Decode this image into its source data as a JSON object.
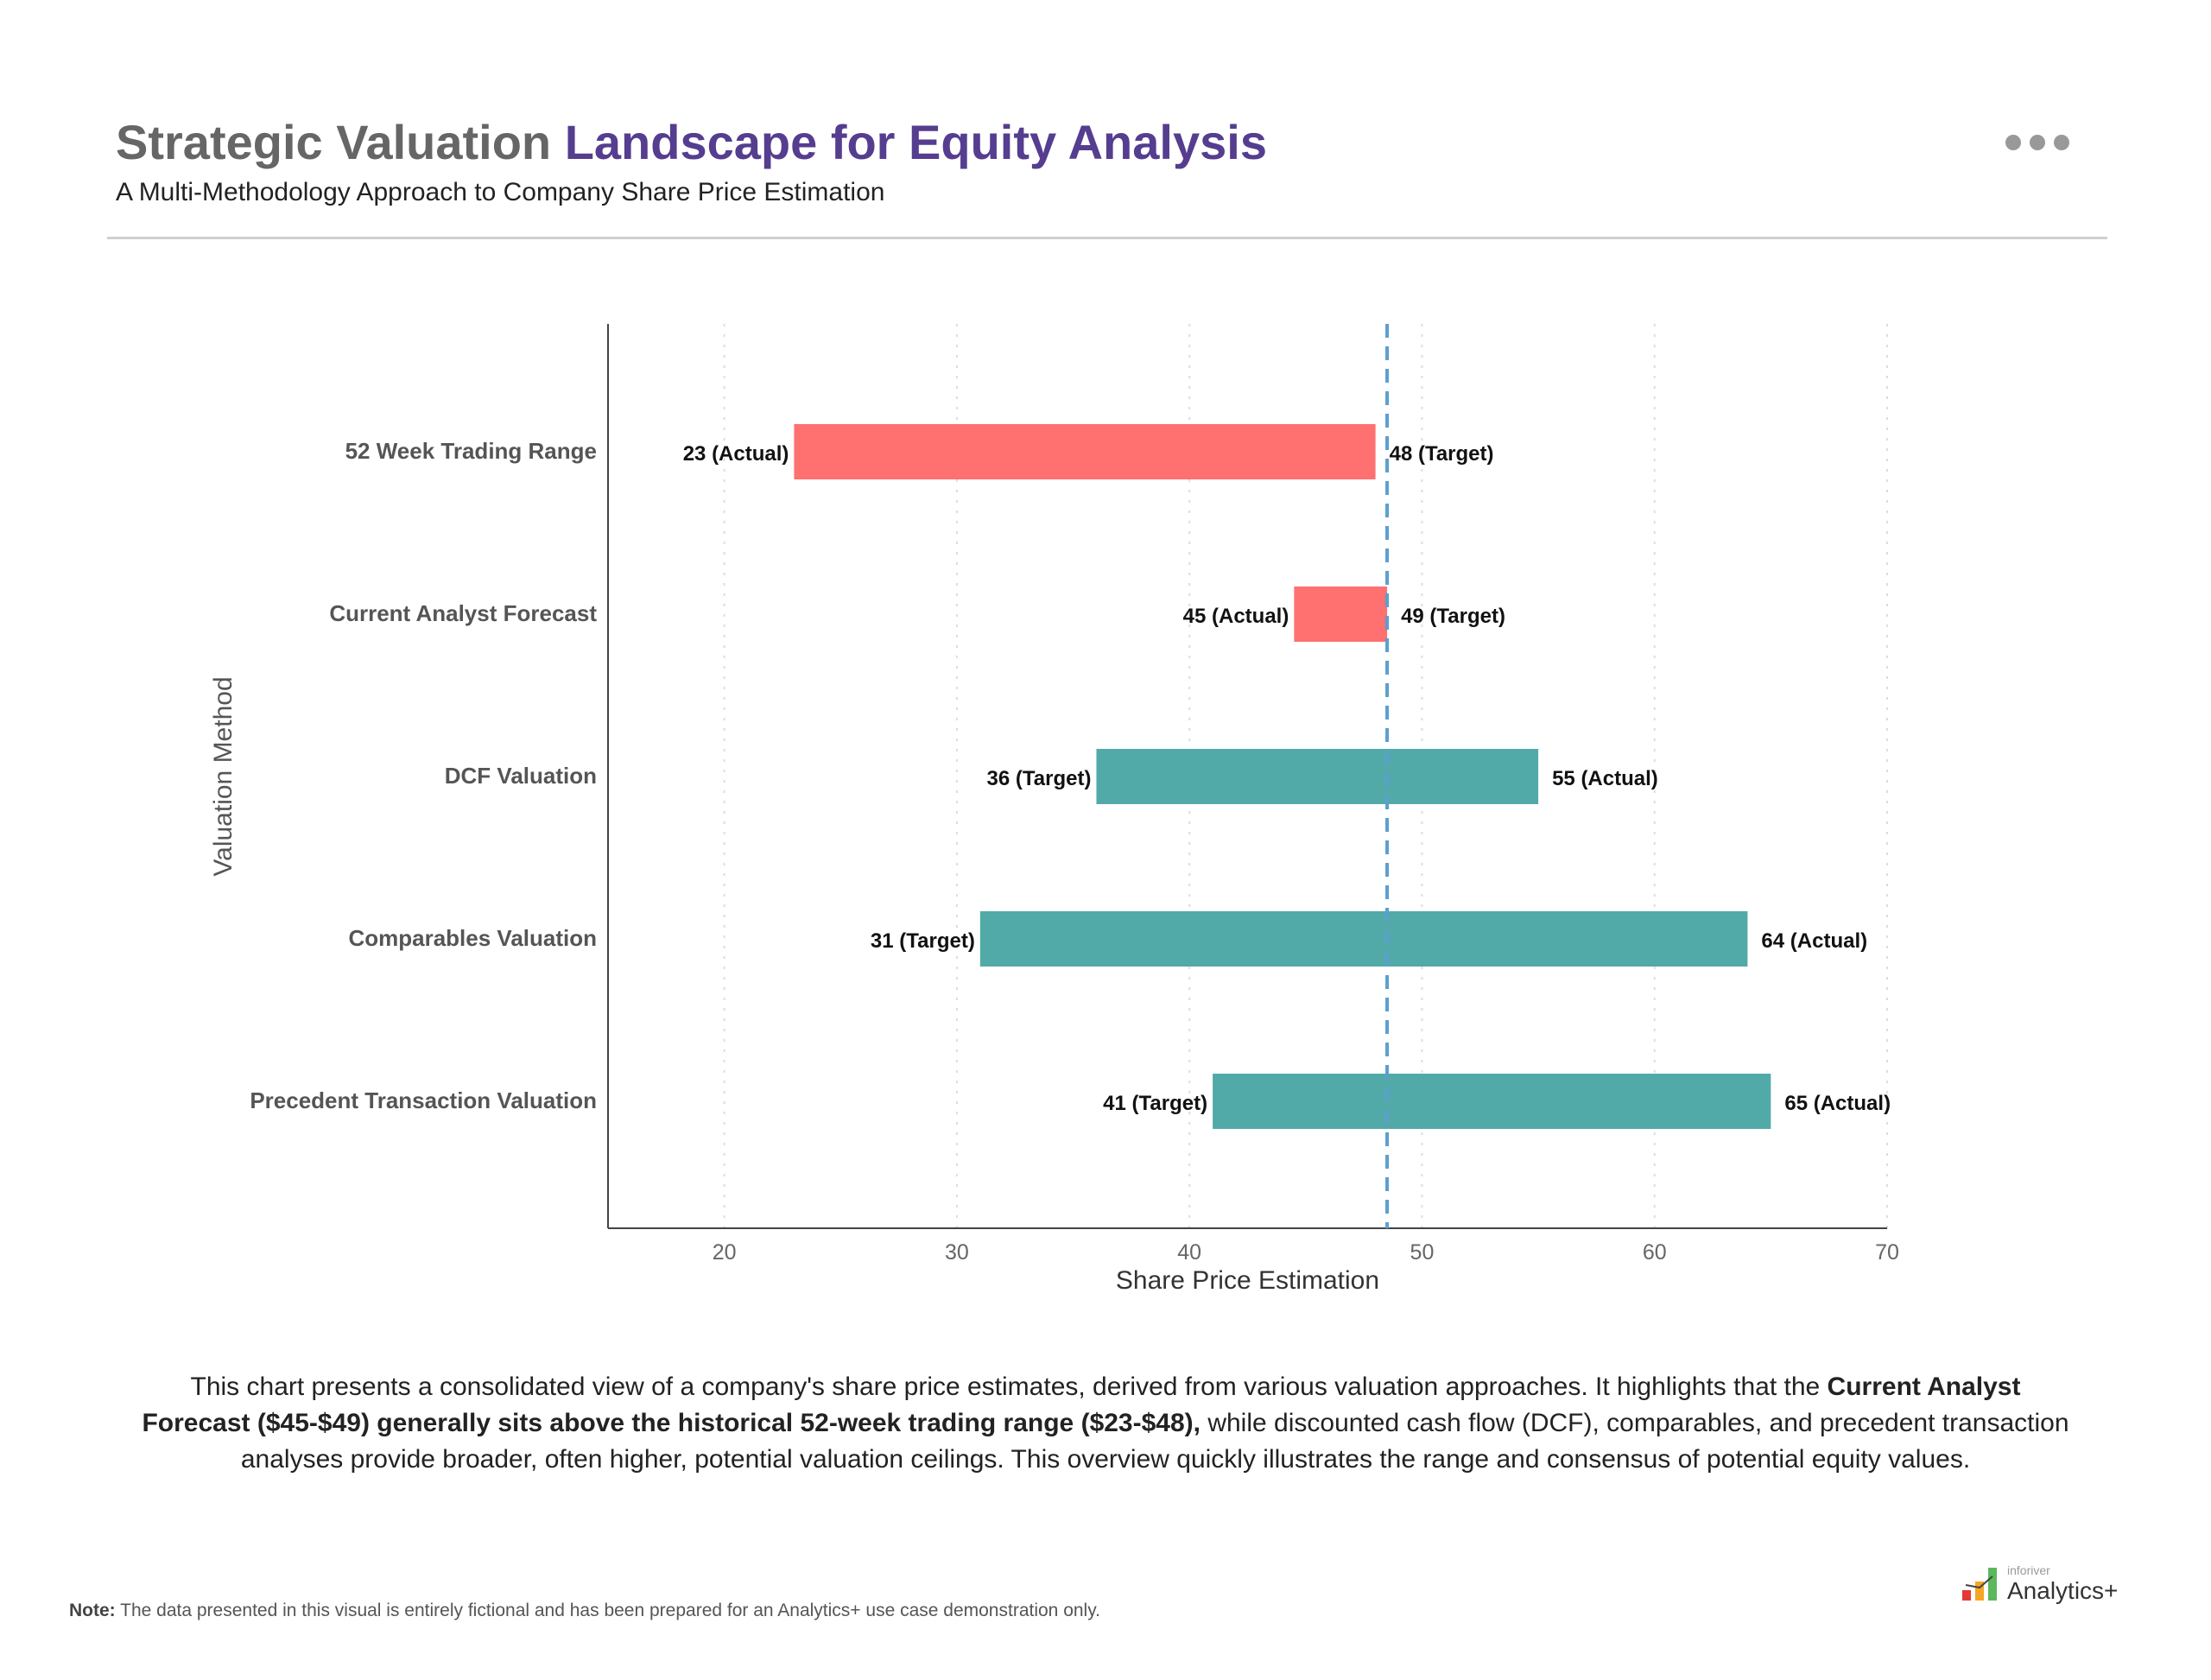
{
  "header": {
    "title_part1": "Strategic Valuation",
    "title_part2": "Landscape for Equity Analysis",
    "subtitle": "A Multi-Methodology Approach to Company Share Price Estimation",
    "menu_icon": "more-horizontal-icon"
  },
  "chart_data": {
    "type": "bar",
    "orientation": "horizontal-range",
    "xlabel": "Share Price Estimation",
    "ylabel": "Valuation Method",
    "xlim": [
      15,
      70
    ],
    "xticks": [
      20,
      30,
      40,
      50,
      60,
      70
    ],
    "grid": "vertical dotted",
    "reference_line": 48.5,
    "colors": {
      "below_reference": "#ff7070",
      "above_reference": "#52aaa8",
      "reference": "#5b9fcf"
    },
    "categories": [
      "52 Week Trading Range",
      "Current Analyst Forecast",
      "DCF Valuation",
      "Comparables Valuation",
      "Precedent Transaction Valuation"
    ],
    "bars": [
      {
        "start": 23,
        "end": 48,
        "start_label": "23 (Actual)",
        "end_label": "48 (Target)",
        "color": "#ff7070"
      },
      {
        "start": 44.5,
        "end": 48.5,
        "start_label": "45 (Actual)",
        "end_label": "49 (Target)",
        "color": "#ff7070"
      },
      {
        "start": 36,
        "end": 55,
        "start_label": "36 (Target)",
        "end_label": "55 (Actual)",
        "color": "#52aaa8"
      },
      {
        "start": 31,
        "end": 64,
        "start_label": "31 (Target)",
        "end_label": "64 (Actual)",
        "color": "#52aaa8"
      },
      {
        "start": 41,
        "end": 65,
        "start_label": "41 (Target)",
        "end_label": "65 (Actual)",
        "color": "#52aaa8"
      }
    ]
  },
  "description": {
    "text1": "This chart presents a consolidated view of a company's share price estimates, derived from various valuation approaches. It highlights that the ",
    "bold": "Current Analyst Forecast ($45-$49) generally sits above the historical 52-week trading range ($23-$48),",
    "text2": " while discounted cash flow (DCF), comparables, and precedent transaction analyses provide broader, often higher, potential valuation ceilings. This overview quickly illustrates the range and consensus of potential equity values."
  },
  "note": {
    "label": "Note:",
    "text": " The data presented in this visual is entirely fictional and has been prepared for an Analytics+ use case demonstration only."
  },
  "logo": {
    "small": "inforiver",
    "large": "Analytics+"
  }
}
